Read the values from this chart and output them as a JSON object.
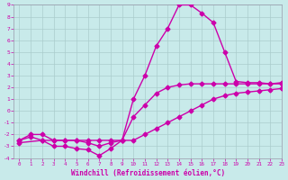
{
  "xlabel": "Windchill (Refroidissement éolien,°C)",
  "xlim": [
    -0.5,
    23
  ],
  "ylim": [
    -4,
    9
  ],
  "xticks": [
    0,
    1,
    2,
    3,
    4,
    5,
    6,
    7,
    8,
    9,
    10,
    11,
    12,
    13,
    14,
    15,
    16,
    17,
    18,
    19,
    20,
    21,
    22,
    23
  ],
  "yticks": [
    -4,
    -3,
    -2,
    -1,
    0,
    1,
    2,
    3,
    4,
    5,
    6,
    7,
    8,
    9
  ],
  "bg_color": "#c8eaea",
  "line_color": "#cc00aa",
  "grid_color": "#aacccc",
  "spine_color": "#9999aa",
  "line1_x": [
    0,
    1,
    2,
    3,
    4,
    5,
    6,
    7,
    8,
    9,
    10,
    11,
    12,
    13,
    14,
    15,
    16,
    17,
    18,
    19,
    20,
    21,
    22,
    23
  ],
  "line1_y": [
    -2.5,
    -2.2,
    -2.5,
    -3.0,
    -3.0,
    -3.2,
    -3.3,
    -3.8,
    -3.2,
    -2.5,
    -0.5,
    0.5,
    1.5,
    2.0,
    2.2,
    2.3,
    2.3,
    2.3,
    2.3,
    2.3,
    2.3,
    2.3,
    2.3,
    2.3
  ],
  "line2_x": [
    0,
    1,
    2,
    3,
    4,
    5,
    6,
    7,
    8,
    9,
    10,
    11,
    12,
    13,
    14,
    15,
    16,
    17,
    18,
    19,
    20,
    21,
    22,
    23
  ],
  "line2_y": [
    -2.5,
    -2.0,
    -2.0,
    -2.5,
    -2.5,
    -2.5,
    -2.7,
    -3.0,
    -2.7,
    -2.5,
    1.0,
    3.0,
    5.5,
    7.0,
    9.0,
    9.0,
    8.3,
    7.5,
    5.0,
    2.5,
    2.4,
    2.4,
    2.3,
    2.4
  ],
  "line3_x": [
    0,
    2,
    3,
    4,
    5,
    6,
    7,
    8,
    9,
    10,
    11,
    12,
    13,
    14,
    15,
    16,
    17,
    18,
    19,
    20,
    21,
    22,
    23
  ],
  "line3_y": [
    -2.7,
    -2.5,
    -2.5,
    -2.5,
    -2.5,
    -2.5,
    -2.5,
    -2.5,
    -2.5,
    -2.5,
    -2.0,
    -1.5,
    -1.0,
    -0.5,
    0.0,
    0.5,
    1.0,
    1.3,
    1.5,
    1.6,
    1.7,
    1.8,
    1.9
  ],
  "marker": "D",
  "markersize": 2.5,
  "linewidth": 1.0
}
